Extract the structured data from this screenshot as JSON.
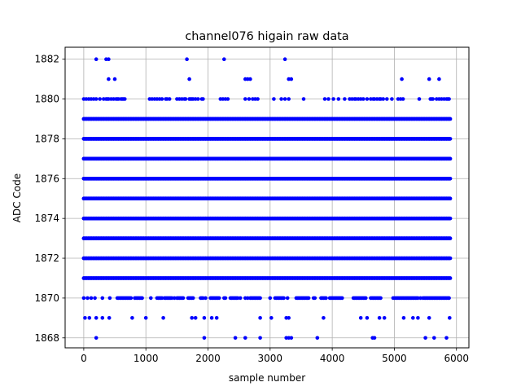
{
  "chart_data": {
    "type": "scatter",
    "title": "channel076 higain raw data",
    "xlabel": "sample number",
    "ylabel": "ADC Code",
    "xlim": [
      -300,
      6200
    ],
    "ylim": [
      1867.5,
      1882.6
    ],
    "xticks": [
      0,
      1000,
      2000,
      3000,
      4000,
      5000,
      6000
    ],
    "yticks": [
      1868,
      1870,
      1872,
      1874,
      1876,
      1878,
      1880,
      1882
    ],
    "grid": true,
    "marker_color": "#0000ff",
    "series": [
      {
        "x_range": [
          0,
          5900
        ],
        "levels": [
          {
            "y": 1868,
            "x": [
              200,
              1940,
              2440,
              2600,
              2840,
              3260,
              3300,
              3340,
              3760,
              4650,
              4680,
              5500,
              5640,
              5840
            ]
          },
          {
            "y": 1869,
            "x": [
              20,
              90,
              200,
              300,
              410,
              780,
              1000,
              1280,
              1740,
              1800,
              1940,
              2060,
              2140,
              2840,
              3020,
              3260,
              3300,
              3860,
              4460,
              4560,
              4760,
              4840,
              5150,
              5300,
              5380,
              5560,
              5890
            ]
          },
          {
            "y": 1870,
            "x": [
              0,
              60,
              120,
              180,
              300,
              420,
              540,
              560,
              580,
              600,
              620,
              640,
              660,
              680,
              700,
              720,
              740,
              760,
              820,
              840,
              860,
              880,
              900,
              920,
              940,
              1080,
              1180,
              1200,
              1220,
              1240,
              1260,
              1300,
              1320,
              1340,
              1360,
              1380,
              1400,
              1420,
              1460,
              1500,
              1520,
              1540,
              1560,
              1580,
              1600,
              1680,
              1700,
              1720,
              1740,
              1760,
              1880,
              1900,
              1920,
              1960,
              2040,
              2060,
              2080,
              2100,
              2120,
              2140,
              2160,
              2180,
              2260,
              2280,
              2360,
              2380,
              2400,
              2420,
              2440,
              2460,
              2480,
              2520,
              2600,
              2640,
              2680,
              2700,
              2720,
              2740,
              2760,
              2780,
              2800,
              2820,
              2840,
              3000,
              3080,
              3100,
              3120,
              3140,
              3160,
              3180,
              3200,
              3220,
              3280,
              3420,
              3440,
              3460,
              3480,
              3500,
              3520,
              3540,
              3560,
              3580,
              3600,
              3620,
              3700,
              3720,
              3820,
              3840,
              3860,
              3880,
              3900,
              3960,
              3980,
              4000,
              4020,
              4040,
              4060,
              4080,
              4100,
              4120,
              4140,
              4160,
              4340,
              4360,
              4380,
              4400,
              4420,
              4440,
              4460,
              4480,
              4500,
              4520,
              4540,
              4620,
              4640,
              4660,
              4680,
              4700,
              4720,
              4740,
              4760,
              4780,
              4980,
              5000,
              5020,
              5040,
              5060,
              5080,
              5100,
              5120,
              5140,
              5160,
              5180,
              5200,
              5220,
              5240,
              5260,
              5280,
              5300,
              5320,
              5340,
              5360,
              5380,
              5420,
              5460,
              5480,
              5500,
              5520,
              5540,
              5560,
              5580,
              5600,
              5620,
              5640,
              5660,
              5680,
              5700,
              5720,
              5740,
              5760,
              5780,
              5800,
              5820,
              5840,
              5860,
              5880
            ]
          },
          {
            "y": 1880,
            "x": [
              0,
              40,
              80,
              120,
              160,
              200,
              260,
              320,
              360,
              380,
              400,
              440,
              480,
              520,
              540,
              560,
              600,
              620,
              640,
              660,
              1060,
              1100,
              1140,
              1180,
              1220,
              1260,
              1320,
              1340,
              1380,
              1500,
              1540,
              1580,
              1620,
              1640,
              1700,
              1720,
              1740,
              1760,
              1800,
              1840,
              1900,
              1920,
              2200,
              2240,
              2280,
              2320,
              2600,
              2660,
              2720,
              2760,
              2800,
              3060,
              3180,
              3240,
              3300,
              3540,
              3880,
              3940,
              4020,
              4100,
              4200,
              4280,
              4320,
              4360,
              4380,
              4420,
              4460,
              4500,
              4560,
              4620,
              4660,
              4680,
              4720,
              4760,
              4780,
              4820,
              4880,
              4960,
              5060,
              5100,
              5140,
              5400,
              5580,
              5600,
              5620,
              5680,
              5720,
              5760,
              5800,
              5840,
              5860,
              5880
            ]
          },
          {
            "y": 1881,
            "x": [
              400,
              500,
              1700,
              2600,
              2640,
              2680,
              3300,
              3340,
              5120,
              5560,
              5720
            ]
          },
          {
            "y": 1882,
            "x": [
              200,
              360,
              400,
              1660,
              2260,
              3240
            ]
          }
        ],
        "dense_levels": [
          1871,
          1872,
          1873,
          1874,
          1875,
          1876,
          1877,
          1878,
          1879
        ]
      }
    ]
  }
}
